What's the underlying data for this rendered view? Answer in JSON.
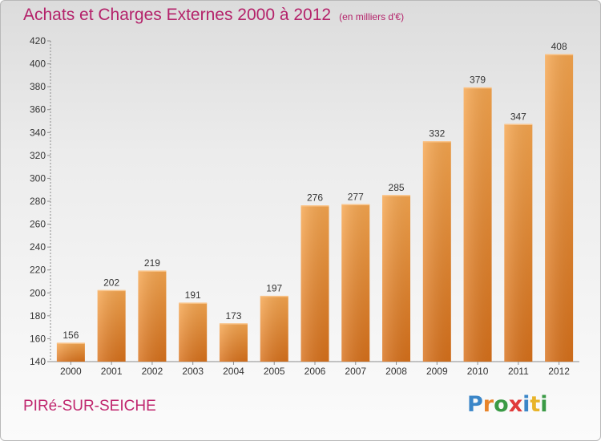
{
  "header": {
    "title": "Achats et Charges Externes 2000 à 2012",
    "unit": "(en milliers d'€)"
  },
  "footer": {
    "commune": "PIRé-SUR-SEICHE",
    "brand": [
      "P",
      "r",
      "o",
      "x",
      "i",
      "t",
      "i"
    ]
  },
  "colors": {
    "bar_top": "#f6a64f",
    "bar_bottom": "#d8711b",
    "title": "#b4226a",
    "brand": [
      "#3b86c8",
      "#e8842a",
      "#3a9a45",
      "#e03a3a",
      "#3b86c8",
      "#e8b42a",
      "#3a9a45"
    ]
  },
  "chart_data": {
    "type": "bar",
    "title": "Achats et Charges Externes 2000 à 2012",
    "subtitle": "(en milliers d'€)",
    "xlabel": "",
    "ylabel": "",
    "categories": [
      "2000",
      "2001",
      "2002",
      "2003",
      "2004",
      "2005",
      "2006",
      "2007",
      "2008",
      "2009",
      "2010",
      "2011",
      "2012"
    ],
    "values": [
      156,
      202,
      219,
      191,
      173,
      197,
      276,
      277,
      285,
      332,
      379,
      347,
      408
    ],
    "ylim": [
      140,
      420
    ],
    "yticks": [
      140,
      160,
      180,
      200,
      220,
      240,
      260,
      280,
      300,
      320,
      340,
      360,
      380,
      400,
      420
    ],
    "grid": false,
    "legend": "none"
  }
}
